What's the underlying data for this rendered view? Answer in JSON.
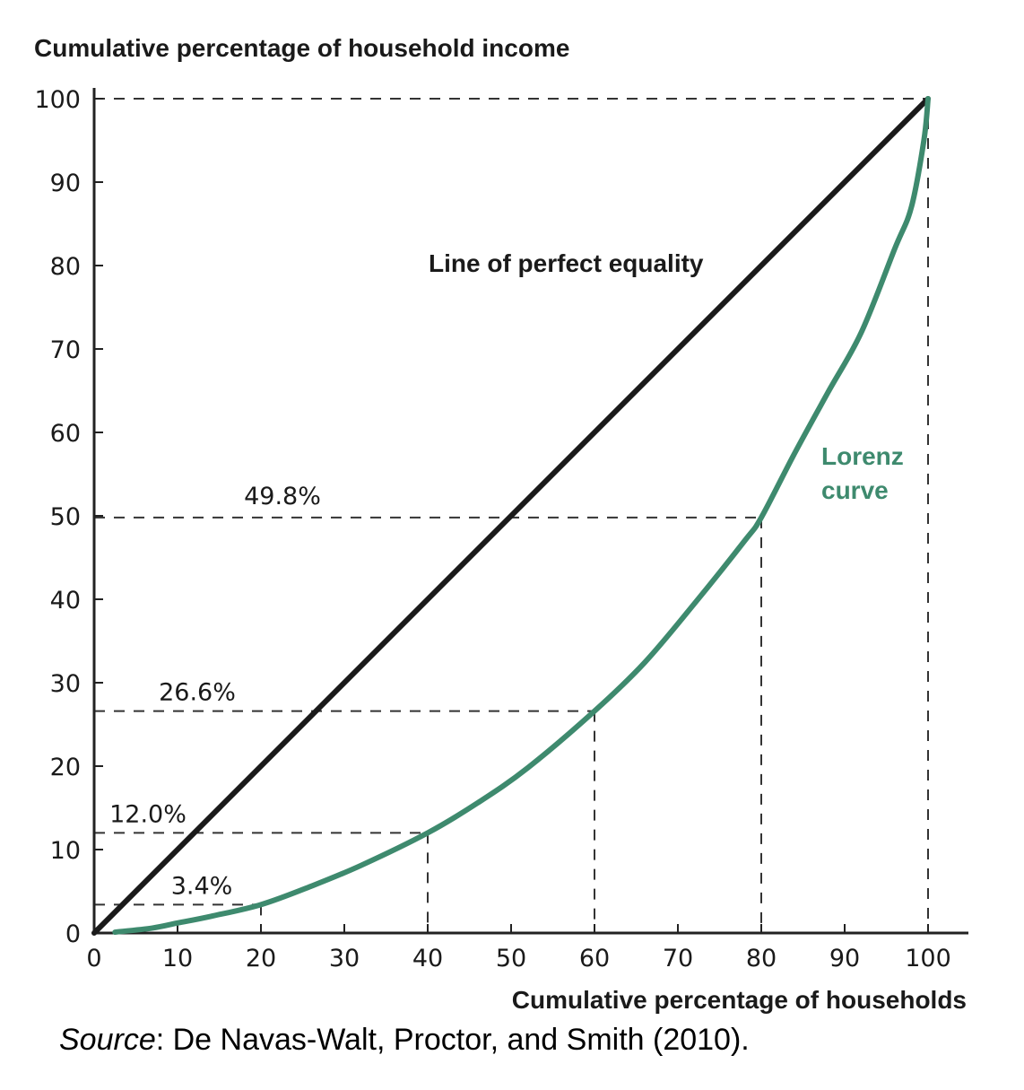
{
  "chart_data": {
    "type": "line",
    "ylabel": "Cumulative percentage of household income",
    "xlabel": "Cumulative percentage of households",
    "xlim": [
      0,
      100
    ],
    "ylim": [
      0,
      100
    ],
    "x_ticks": [
      "0",
      "10",
      "20",
      "30",
      "40",
      "50",
      "60",
      "70",
      "80",
      "90",
      "100"
    ],
    "y_ticks": [
      "0",
      "10",
      "20",
      "30",
      "40",
      "50",
      "60",
      "70",
      "80",
      "90",
      "100"
    ],
    "grid": false,
    "colors": {
      "equality": "#1a1a1a",
      "lorenz": "#3e8a6e",
      "guides": "#333333"
    },
    "series": [
      {
        "name": "Line of perfect equality",
        "x": [
          0,
          100
        ],
        "y": [
          0,
          100
        ]
      },
      {
        "name": "Lorenz curve",
        "x": [
          2.5,
          7,
          10,
          14,
          20,
          26,
          32,
          40,
          46,
          52,
          60,
          66,
          72,
          78,
          80,
          84,
          88,
          92,
          96,
          98,
          99.5,
          100
        ],
        "y": [
          0.1,
          0.6,
          1.2,
          2.0,
          3.4,
          5.6,
          8.1,
          12.0,
          15.6,
          19.8,
          26.6,
          32.4,
          39.5,
          47.0,
          49.8,
          57.5,
          64.8,
          72.0,
          82.0,
          87.0,
          95.0,
          100.0
        ]
      }
    ],
    "highlighted_points": [
      {
        "x": 20,
        "y": 3.4,
        "label": "3.4%"
      },
      {
        "x": 40,
        "y": 12.0,
        "label": "12.0%"
      },
      {
        "x": 60,
        "y": 26.6,
        "label": "26.6%"
      },
      {
        "x": 80,
        "y": 49.8,
        "label": "49.8%"
      },
      {
        "x": 100,
        "y": 100,
        "label": ""
      }
    ],
    "annotations": {
      "equality_label": "Line of perfect equality",
      "lorenz_label_line1": "Lorenz",
      "lorenz_label_line2": "curve"
    }
  },
  "source": {
    "prefix": "Source",
    "text": ": De Navas-Walt, Proctor, and Smith (2010)."
  }
}
